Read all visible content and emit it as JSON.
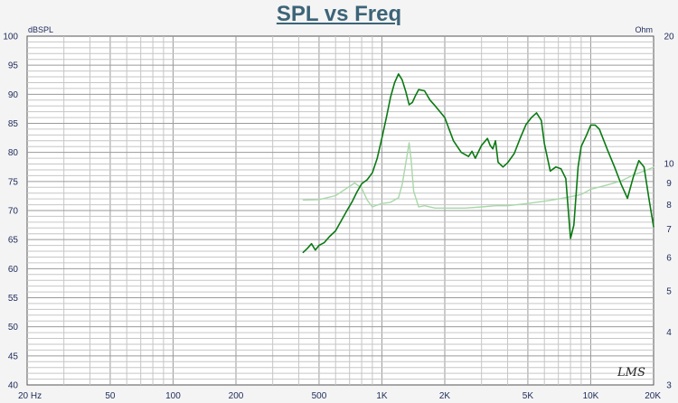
{
  "chart_data": {
    "type": "line",
    "title": "SPL vs Freq",
    "left_unit": "dBSPL",
    "right_unit": "Ohm",
    "logo": "LMS",
    "x_scale": "log",
    "xlim": [
      20,
      20000
    ],
    "ylim_left": [
      40,
      100
    ],
    "ylim_right": [
      3,
      20
    ],
    "right_scale": "log",
    "grid": true,
    "x_ticks": [
      {
        "v": 20,
        "label": "20 Hz"
      },
      {
        "v": 50,
        "label": "50"
      },
      {
        "v": 100,
        "label": "100"
      },
      {
        "v": 200,
        "label": "200"
      },
      {
        "v": 500,
        "label": "500"
      },
      {
        "v": 1000,
        "label": "1K"
      },
      {
        "v": 2000,
        "label": "2K"
      },
      {
        "v": 5000,
        "label": "5K"
      },
      {
        "v": 10000,
        "label": "10K"
      },
      {
        "v": 20000,
        "label": "20K"
      }
    ],
    "y_ticks_left": [
      40,
      45,
      50,
      55,
      60,
      65,
      70,
      75,
      80,
      85,
      90,
      95,
      100
    ],
    "y_ticks_right": [
      3,
      4,
      5,
      6,
      7,
      8,
      9,
      10,
      20
    ],
    "colors": {
      "spl": "#0a7a12",
      "impedance": "#a8d8a8",
      "grid_major": "#9a9a9a",
      "grid_minor": "#c6c6c6",
      "title": "#3c6478"
    },
    "series": [
      {
        "axis": "left",
        "x": [
          420,
          440,
          460,
          480,
          500,
          530,
          560,
          600,
          640,
          680,
          720,
          760,
          800,
          850,
          900,
          950,
          1000,
          1050,
          1100,
          1150,
          1200,
          1250,
          1300,
          1350,
          1400,
          1450,
          1500,
          1600,
          1700,
          1800,
          2000,
          2200,
          2400,
          2600,
          2700,
          2800,
          3000,
          3200,
          3300,
          3400,
          3500,
          3600,
          3800,
          4000,
          4300,
          4600,
          4900,
          5200,
          5500,
          5800,
          6000,
          6400,
          6800,
          7200,
          7600,
          8000,
          8300,
          8700,
          9000,
          9500,
          10000,
          10500,
          11000,
          12000,
          13000,
          14000,
          15000,
          16000,
          17000,
          18000,
          19000,
          20000
        ],
        "y": [
          62.8,
          63.5,
          64.3,
          63.2,
          64.0,
          64.5,
          65.5,
          66.5,
          68.3,
          70.0,
          71.5,
          73.2,
          74.6,
          75.3,
          76.5,
          79.0,
          82.5,
          86.0,
          89.5,
          92.0,
          93.5,
          92.5,
          90.5,
          88.2,
          88.6,
          89.8,
          90.8,
          90.6,
          89.0,
          88.0,
          86.0,
          82.0,
          80.0,
          79.3,
          80.2,
          79.0,
          81.2,
          82.4,
          81.2,
          80.6,
          82.0,
          78.3,
          77.5,
          78.2,
          79.8,
          82.5,
          84.8,
          86.0,
          86.8,
          85.5,
          81.5,
          76.8,
          77.5,
          77.2,
          75.5,
          65.2,
          67.5,
          77.5,
          81.0,
          82.8,
          84.7,
          84.7,
          84.0,
          80.5,
          77.5,
          74.5,
          72.1,
          75.8,
          78.6,
          77.5,
          72.0,
          67.2
        ]
      },
      {
        "axis": "right",
        "x": [
          420,
          500,
          600,
          680,
          740,
          800,
          850,
          900,
          950,
          1000,
          1100,
          1200,
          1250,
          1300,
          1350,
          1380,
          1420,
          1500,
          1600,
          1800,
          2000,
          2500,
          3000,
          3500,
          4000,
          5000,
          6000,
          7000,
          8000,
          9000,
          10000,
          12000,
          14000,
          16000,
          18000,
          20000
        ],
        "y": [
          8.2,
          8.22,
          8.4,
          8.75,
          9.0,
          8.75,
          8.2,
          7.9,
          7.98,
          8.05,
          8.1,
          8.3,
          8.9,
          10.0,
          11.2,
          10.2,
          8.6,
          7.9,
          7.95,
          7.85,
          7.85,
          7.85,
          7.9,
          7.95,
          7.95,
          8.05,
          8.15,
          8.25,
          8.35,
          8.45,
          8.7,
          8.9,
          9.1,
          9.4,
          9.6,
          9.8
        ]
      }
    ]
  }
}
